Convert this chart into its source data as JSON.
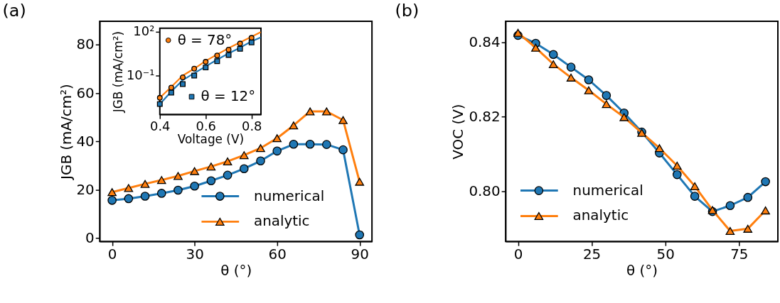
{
  "chart_data": [
    {
      "type": "line",
      "title": "(a)",
      "xlabel": "θ (°)",
      "ylabel": "JGB (mA/cm²)",
      "x": [
        0,
        6,
        12,
        18,
        24,
        30,
        36,
        42,
        48,
        54,
        60,
        66,
        72,
        78,
        84,
        90
      ],
      "series": [
        {
          "name": "numerical",
          "color": "#1f77b4",
          "marker": "circle",
          "values": [
            15.6,
            16.3,
            17.3,
            18.5,
            19.8,
            21.5,
            23.7,
            26.0,
            28.7,
            31.9,
            36.0,
            38.8,
            38.8,
            38.7,
            36.5,
            1.3
          ]
        },
        {
          "name": "analytic",
          "color": "#ff7f0e",
          "marker": "triangle",
          "values": [
            19.0,
            20.7,
            22.4,
            24.0,
            25.7,
            27.7,
            29.6,
            31.7,
            34.3,
            37.2,
            41.3,
            46.6,
            52.4,
            52.4,
            48.8,
            23.3
          ]
        }
      ],
      "xlim": [
        -4.5,
        94.5
      ],
      "xticks": [
        0,
        30,
        60,
        90
      ],
      "ylim": [
        -1.4,
        89.7
      ],
      "yticks": [
        0,
        20,
        40,
        60,
        80
      ],
      "grid": false,
      "legend": "bottom right"
    },
    {
      "type": "line",
      "xlabel": "Voltage (V)",
      "ylabel": "JGB (mA/cm²)",
      "log": "y",
      "series": [
        {
          "color": "#ff7f0e",
          "marker": "none",
          "x": [
            0.4,
            0.45,
            0.5,
            0.55,
            0.6,
            0.65,
            0.7,
            0.75,
            0.8,
            0.84
          ],
          "values": [
            0.003,
            0.0166,
            0.1,
            0.295,
            1.0,
            2.75,
            7.5,
            18.6,
            45.7,
            93
          ]
        },
        {
          "color": "#1f77b4",
          "marker": "none",
          "x": [
            0.4,
            0.45,
            0.5,
            0.55,
            0.6,
            0.65,
            0.7,
            0.75,
            0.8,
            0.84
          ],
          "values": [
            0.00112,
            0.0081,
            0.049,
            0.145,
            0.42,
            1.23,
            3.3,
            8.1,
            21.9,
            40.7
          ]
        },
        {
          "name": "θ = 78°",
          "type": "scatter",
          "color": "#ff7f0e",
          "marker": "circle",
          "x": [
            0.4,
            0.45,
            0.5,
            0.55,
            0.6,
            0.65,
            0.7,
            0.75,
            0.8
          ],
          "values": [
            0.003,
            0.0148,
            0.075,
            0.295,
            0.87,
            2.37,
            5.9,
            15.5,
            38
          ]
        },
        {
          "name": "θ = 12°",
          "type": "scatter",
          "color": "#1f77b4",
          "marker": "square",
          "x": [
            0.4,
            0.45,
            0.5,
            0.55,
            0.6,
            0.65,
            0.7,
            0.75,
            0.8
          ],
          "values": [
            0.00112,
            0.0068,
            0.026,
            0.1,
            0.355,
            0.96,
            2.57,
            6.8,
            18.6
          ]
        }
      ],
      "xlim": [
        0.4,
        0.841
      ],
      "xticks": [
        0.4,
        0.6,
        0.8
      ],
      "ylim": [
        0.00022,
        171
      ],
      "yticks": [
        {
          "value": 100,
          "label": "10²"
        },
        {
          "value": 0.1,
          "label": "10⁻¹"
        }
      ],
      "grid": false,
      "legend": "top left"
    },
    {
      "type": "line",
      "title": "(b)",
      "xlabel": "θ (°)",
      "ylabel": "VOC (V)",
      "x": [
        0,
        6,
        12,
        18,
        24,
        30,
        36,
        42,
        48,
        54,
        60,
        66,
        72,
        78,
        84
      ],
      "series": [
        {
          "name": "numerical",
          "color": "#1f77b4",
          "marker": "circle",
          "values": [
            0.8418,
            0.8397,
            0.8367,
            0.8333,
            0.8299,
            0.8257,
            0.821,
            0.8159,
            0.8103,
            0.8045,
            0.7987,
            0.7946,
            0.7962,
            0.7984,
            0.8026
          ]
        },
        {
          "name": "analytic",
          "color": "#ff7f0e",
          "marker": "triangle",
          "values": [
            0.8425,
            0.8385,
            0.8341,
            0.8305,
            0.8271,
            0.8234,
            0.8199,
            0.8157,
            0.8116,
            0.8069,
            0.8014,
            0.795,
            0.7894,
            0.79,
            0.7949
          ]
        }
      ],
      "xlim": [
        -4.2,
        88.2
      ],
      "xticks": [
        0,
        25,
        50,
        75
      ],
      "ylim": [
        0.7866,
        0.8456
      ],
      "yticks": [
        {
          "value": 0.8,
          "label": "0.80"
        },
        0.82,
        0.84
      ],
      "grid": false,
      "legend": "bottom left"
    }
  ]
}
